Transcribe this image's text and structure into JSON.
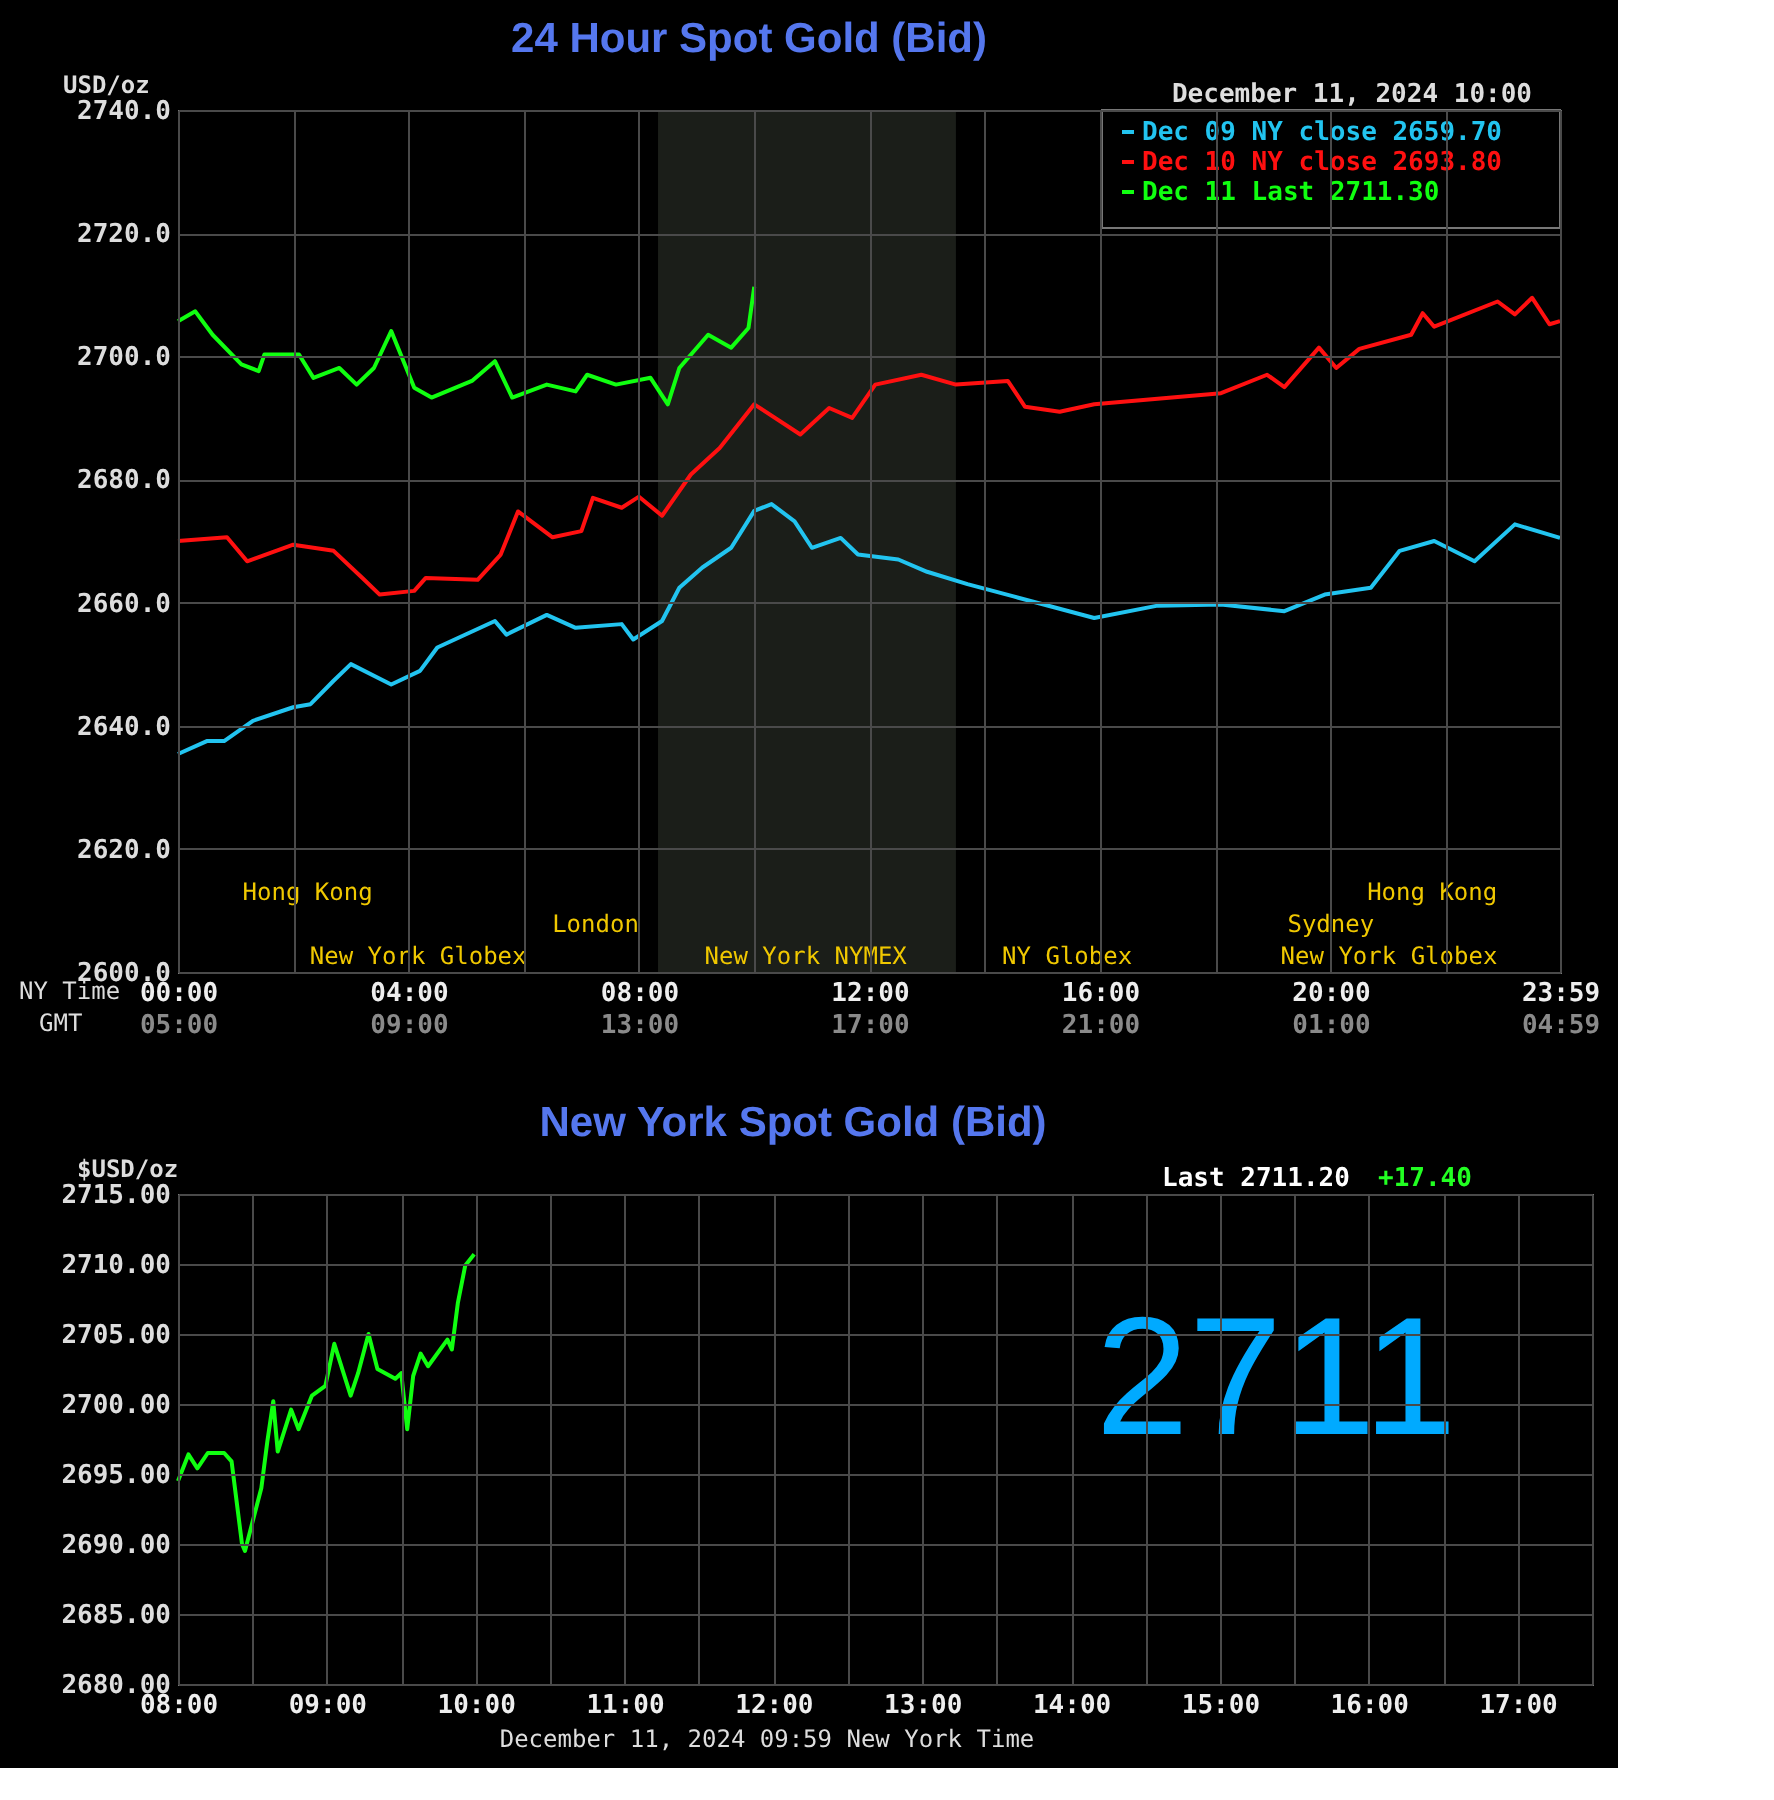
{
  "chart_data": [
    {
      "type": "line",
      "title": "24 Hour Spot Gold (Bid)",
      "xlabel": "NY Time",
      "ylabel": "USD/oz",
      "x2label": "GMT",
      "xlim": [
        0,
        23.983
      ],
      "xticks": [
        {
          "value": 0,
          "label": "00:00"
        },
        {
          "value": 2,
          "label": null
        },
        {
          "value": 4,
          "label": "04:00"
        },
        {
          "value": 6,
          "label": null
        },
        {
          "value": 8,
          "label": "08:00"
        },
        {
          "value": 10,
          "label": null
        },
        {
          "value": 12,
          "label": "12:00"
        },
        {
          "value": 14,
          "label": null
        },
        {
          "value": 16,
          "label": "16:00"
        },
        {
          "value": 18,
          "label": null
        },
        {
          "value": 20,
          "label": "20:00"
        },
        {
          "value": 22,
          "label": null
        },
        {
          "value": 23.983,
          "label": "23:59"
        }
      ],
      "x2lim": [
        "2024-12-11T05:00",
        "2024-12-12T04:59"
      ],
      "x2ticks": [
        {
          "value": "2024-12-11T05:00",
          "label": "05:00"
        },
        {
          "value": "2024-12-11T09:00",
          "label": "09:00"
        },
        {
          "value": "2024-12-11T13:00",
          "label": "13:00"
        },
        {
          "value": "2024-12-11T17:00",
          "label": "17:00"
        },
        {
          "value": "2024-12-11T21:00",
          "label": "21:00"
        },
        {
          "value": "2024-12-12T01:00",
          "label": "01:00"
        },
        {
          "value": "2024-12-12T04:59",
          "label": "04:59"
        }
      ],
      "ylim": [
        2600,
        2740
      ],
      "yticks": [
        {
          "value": 2600,
          "label": "2600.0"
        },
        {
          "value": 2620,
          "label": "2620.0"
        },
        {
          "value": 2640,
          "label": "2640.0"
        },
        {
          "value": 2660,
          "label": "2660.0"
        },
        {
          "value": 2680,
          "label": "2680.0"
        },
        {
          "value": 2700,
          "label": "2700.0"
        },
        {
          "value": 2720,
          "label": "2720.0"
        },
        {
          "value": 2740,
          "label": "2740.0"
        }
      ],
      "grid": true,
      "legend": "top right",
      "annotations": [
        "December 11, 2024 10:00",
        "Hong Kong",
        "London",
        "New York Globex",
        "New York NYMEX",
        "NY Globex",
        "New York Globex",
        "Sydney",
        "Hong Kong"
      ],
      "bands": [
        {
          "axis": "x",
          "from": 8.33,
          "to": 13.5,
          "color": "#1b1e19"
        }
      ],
      "series": [
        {
          "name": "Dec 09 NY close 2659.70",
          "color": "#22c4f0",
          "x": [
            0,
            0.5,
            0.8,
            1.3,
            2,
            2.3,
            2.7,
            3,
            3.7,
            4.2,
            4.5,
            5.5,
            5.7,
            6.4,
            6.9,
            7.7,
            7.9,
            8.4,
            8.7,
            9.1,
            9.6,
            10,
            10.3,
            10.7,
            11,
            11.5,
            11.8,
            12.5,
            13,
            13.7,
            14.5,
            15.9,
            17,
            18.1,
            19.2,
            19.9,
            20.7,
            21.2,
            21.8,
            22.5,
            23.2,
            23.983
          ],
          "values": [
            2635.4,
            2637.5,
            2637.5,
            2640.8,
            2643,
            2643.5,
            2647.3,
            2650,
            2646.7,
            2648.9,
            2652.7,
            2657,
            2654.8,
            2658,
            2655.9,
            2656.5,
            2654,
            2657,
            2662.4,
            2665.7,
            2668.9,
            2674.9,
            2676,
            2673.2,
            2668.9,
            2670.5,
            2667.8,
            2667,
            2665,
            2663,
            2661,
            2657.5,
            2659.5,
            2659.7,
            2658.6,
            2661.3,
            2662.4,
            2668.4,
            2670,
            2666.7,
            2672.7,
            2670.5
          ]
        },
        {
          "name": "Dec 10 NY close 2693.80",
          "color": "#ff1010",
          "x": [
            0,
            0.85,
            1.2,
            2,
            2.7,
            3.2,
            3.5,
            4.1,
            4.3,
            5.2,
            5.6,
            5.9,
            6.5,
            7,
            7.2,
            7.7,
            8,
            8.4,
            8.9,
            9.4,
            10,
            10.8,
            11.3,
            11.7,
            12.1,
            12.9,
            13.5,
            14.4,
            14.7,
            15.3,
            15.9,
            18.1,
            18.9,
            19.2,
            19.8,
            20.1,
            20.5,
            21.4,
            21.6,
            21.8,
            22.9,
            23.2,
            23.5,
            23.8,
            23.983
          ],
          "values": [
            2670,
            2670.6,
            2666.7,
            2669.4,
            2668.4,
            2664,
            2661.3,
            2661.9,
            2664,
            2663.7,
            2667.8,
            2674.8,
            2670.6,
            2671.6,
            2677,
            2675.4,
            2677.2,
            2674.1,
            2680.8,
            2685.1,
            2692.2,
            2687.3,
            2691.6,
            2690,
            2695.4,
            2697,
            2695.4,
            2696,
            2691.8,
            2691,
            2692.2,
            2694,
            2697,
            2695,
            2701.4,
            2698.1,
            2701.2,
            2703.5,
            2707,
            2704.8,
            2708.9,
            2706.8,
            2709.5,
            2705.2,
            2705.7
          ]
        },
        {
          "name": "Dec 11 Last 2711.30",
          "color": "#10ff10",
          "x": [
            0,
            0.3,
            0.6,
            1.1,
            1.4,
            1.5,
            2.1,
            2.35,
            2.8,
            3.1,
            3.4,
            3.7,
            4.1,
            4.4,
            5.1,
            5.5,
            5.8,
            6.4,
            6.9,
            7.1,
            7.6,
            8.2,
            8.5,
            8.7,
            9.2,
            9.6,
            9.9,
            10
          ],
          "values": [
            2705.7,
            2707.3,
            2703.5,
            2698.7,
            2697.6,
            2700.3,
            2700.3,
            2696.5,
            2698.1,
            2695.4,
            2698.1,
            2704.1,
            2694.9,
            2693.3,
            2696,
            2699.2,
            2693.3,
            2695.4,
            2694.3,
            2697,
            2695.4,
            2696.5,
            2692.2,
            2698.1,
            2703.5,
            2701.4,
            2704.6,
            2711.3
          ]
        }
      ]
    },
    {
      "type": "line",
      "title": "New York Spot Gold (Bid)",
      "xlabel": "December 11, 2024 09:59 New York Time",
      "ylabel": "$USD/oz",
      "xlim": [
        8,
        17.5
      ],
      "xticks": [
        {
          "value": 8,
          "label": "08:00"
        },
        {
          "value": 8.5,
          "label": null
        },
        {
          "value": 9,
          "label": "09:00"
        },
        {
          "value": 9.5,
          "label": null
        },
        {
          "value": 10,
          "label": "10:00"
        },
        {
          "value": 10.5,
          "label": null
        },
        {
          "value": 11,
          "label": "11:00"
        },
        {
          "value": 11.5,
          "label": null
        },
        {
          "value": 12,
          "label": "12:00"
        },
        {
          "value": 12.5,
          "label": null
        },
        {
          "value": 13,
          "label": "13:00"
        },
        {
          "value": 13.5,
          "label": null
        },
        {
          "value": 14,
          "label": "14:00"
        },
        {
          "value": 14.5,
          "label": null
        },
        {
          "value": 15,
          "label": "15:00"
        },
        {
          "value": 15.5,
          "label": null
        },
        {
          "value": 16,
          "label": "16:00"
        },
        {
          "value": 16.5,
          "label": null
        },
        {
          "value": 17,
          "label": "17:00"
        },
        {
          "value": 17.5,
          "label": null
        }
      ],
      "ylim": [
        2680,
        2715
      ],
      "yticks": [
        {
          "value": 2680,
          "label": "2680.00"
        },
        {
          "value": 2685,
          "label": "2685.00"
        },
        {
          "value": 2690,
          "label": "2690.00"
        },
        {
          "value": 2695,
          "label": "2695.00"
        },
        {
          "value": 2700,
          "label": "2700.00"
        },
        {
          "value": 2705,
          "label": "2705.00"
        },
        {
          "value": 2710,
          "label": "2710.00"
        },
        {
          "value": 2715,
          "label": "2715.00"
        }
      ],
      "grid": true,
      "annotations": [
        "Last 2711.20",
        "+17.40",
        "2711"
      ],
      "series": [
        {
          "color": "#10ff10",
          "x": [
            8,
            8.07,
            8.13,
            8.2,
            8.31,
            8.36,
            8.43,
            8.45,
            8.56,
            8.6,
            8.64,
            8.67,
            8.76,
            8.81,
            8.9,
            8.99,
            9.05,
            9.16,
            9.21,
            9.28,
            9.34,
            9.46,
            9.5,
            9.54,
            9.58,
            9.63,
            9.68,
            9.81,
            9.84,
            9.88,
            9.93,
            9.99
          ],
          "values": [
            2694.5,
            2696.4,
            2695.4,
            2696.5,
            2696.5,
            2695.9,
            2690,
            2689.5,
            2694,
            2697.3,
            2700.2,
            2696.6,
            2699.6,
            2698.2,
            2700.6,
            2701.3,
            2704.3,
            2700.6,
            2702.2,
            2705,
            2702.5,
            2701.8,
            2702.2,
            2698.2,
            2702,
            2703.6,
            2702.7,
            2704.6,
            2703.9,
            2707.2,
            2709.9,
            2710.7
          ]
        }
      ]
    }
  ]
}
